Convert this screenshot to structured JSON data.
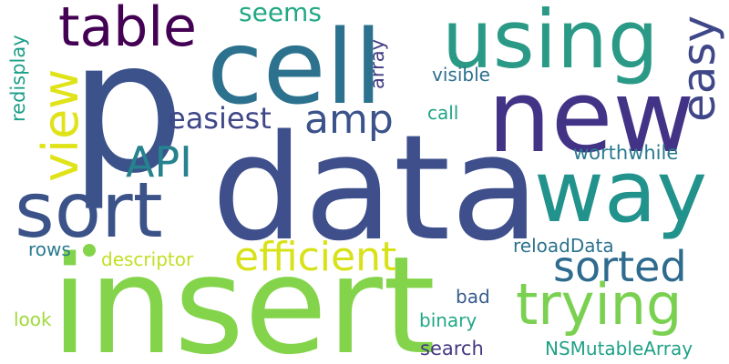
{
  "words": [
    {
      "text": "p",
      "color": "#3b528b"
    },
    {
      "text": "data",
      "color": "#3e4f8b"
    },
    {
      "text": "insert",
      "color": "#84d44b"
    },
    {
      "text": "cell",
      "color": "#2c728e"
    },
    {
      "text": "new",
      "color": "#433386"
    },
    {
      "text": "using",
      "color": "#2a9a87"
    },
    {
      "text": "way",
      "color": "#22928c"
    },
    {
      "text": "sort",
      "color": "#3c5389"
    },
    {
      "text": "table",
      "color": "#440154"
    },
    {
      "text": "view",
      "color": "#dfe318"
    },
    {
      "text": "easy",
      "color": "#3f4789"
    },
    {
      "text": "trying",
      "color": "#7ad151"
    },
    {
      "text": "efficient",
      "color": "#d8e219"
    },
    {
      "text": "sorted",
      "color": "#2e6b8e"
    },
    {
      "text": "amp",
      "color": "#3b528b"
    },
    {
      "text": "API",
      "color": "#26828e"
    },
    {
      "text": "easiest",
      "color": "#3f4788"
    },
    {
      "text": "seems",
      "color": "#22a884"
    },
    {
      "text": "redisplay",
      "color": "#1f9e89"
    },
    {
      "text": "array",
      "color": "#433e85"
    },
    {
      "text": "visible",
      "color": "#2d708e"
    },
    {
      "text": "call",
      "color": "#20a486"
    },
    {
      "text": "worthwhile",
      "color": "#29798e"
    },
    {
      "text": "rows",
      "color": "#2a7b8e"
    },
    {
      "text": "descriptor",
      "color": "#c2df23"
    },
    {
      "text": "reloadData",
      "color": "#2c728e"
    },
    {
      "text": "bad",
      "color": "#365c8d"
    },
    {
      "text": "look",
      "color": "#9fda3a"
    },
    {
      "text": "binary",
      "color": "#22a785"
    },
    {
      "text": "search",
      "color": "#453882"
    },
    {
      "text": "NSMutableArray",
      "color": "#1fa187"
    }
  ],
  "dot_color": "#84d44b"
}
